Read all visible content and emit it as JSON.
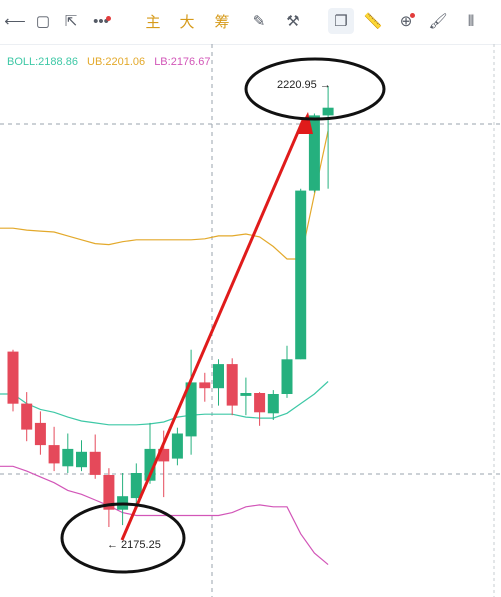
{
  "toolbar": {
    "items": [
      {
        "icon": "horizontal-line-icon",
        "glyph": "⟵"
      },
      {
        "icon": "rectangle-icon",
        "glyph": "▢"
      },
      {
        "icon": "cursor-arrow-icon",
        "glyph": "⇱"
      },
      {
        "icon": "dots-icon",
        "glyph": "•••"
      },
      {
        "icon": "text-zhu",
        "glyph": "主"
      },
      {
        "icon": "text-da",
        "glyph": "大"
      },
      {
        "icon": "text-chou",
        "glyph": "筹"
      },
      {
        "icon": "edit-note-icon",
        "glyph": "✎"
      },
      {
        "icon": "ruler-pen-icon",
        "glyph": "⚒"
      },
      {
        "icon": "copy-icon",
        "glyph": "❐"
      },
      {
        "icon": "ruler-icon",
        "glyph": "📏"
      },
      {
        "icon": "zoom-icon",
        "glyph": "⊕"
      },
      {
        "icon": "brush-icon",
        "glyph": "🖌"
      },
      {
        "icon": "candles-icon",
        "glyph": "⫴"
      }
    ]
  },
  "legend": {
    "boll": "BOLL:2188.86",
    "ub": "UB:2201.06",
    "lb": "LB:2176.67"
  },
  "colors": {
    "up": "#25b07e",
    "down": "#e5495a",
    "boll": "#3ec8a6",
    "ub": "#e3a92b",
    "lb": "#d256b8",
    "arrow": "#e01b1b"
  },
  "annotations": {
    "high_label": "2220.95 →",
    "low_label": "← 2175.25"
  },
  "chart_data": {
    "type": "candlestick",
    "ylim": [
      2171,
      2224
    ],
    "high_value": 2220.95,
    "low_value": 2175.25,
    "candles": [
      {
        "o": 2193.4,
        "h": 2193.6,
        "l": 2187.2,
        "c": 2188.0
      },
      {
        "o": 2188.0,
        "h": 2189.2,
        "l": 2184.1,
        "c": 2185.3
      },
      {
        "o": 2186.0,
        "h": 2187.2,
        "l": 2182.7,
        "c": 2183.7
      },
      {
        "o": 2183.7,
        "h": 2185.6,
        "l": 2181.0,
        "c": 2181.8
      },
      {
        "o": 2181.5,
        "h": 2184.9,
        "l": 2180.8,
        "c": 2183.3
      },
      {
        "o": 2181.4,
        "h": 2184.2,
        "l": 2181.0,
        "c": 2183.0
      },
      {
        "o": 2183.0,
        "h": 2184.8,
        "l": 2180.2,
        "c": 2180.6
      },
      {
        "o": 2180.6,
        "h": 2181.3,
        "l": 2175.2,
        "c": 2177.0
      },
      {
        "o": 2177.0,
        "h": 2180.8,
        "l": 2175.4,
        "c": 2178.4
      },
      {
        "o": 2178.2,
        "h": 2181.8,
        "l": 2177.1,
        "c": 2180.8
      },
      {
        "o": 2180.0,
        "h": 2186.0,
        "l": 2179.7,
        "c": 2183.3
      },
      {
        "o": 2183.3,
        "h": 2185.2,
        "l": 2178.3,
        "c": 2182.0
      },
      {
        "o": 2182.3,
        "h": 2185.5,
        "l": 2181.6,
        "c": 2184.9
      },
      {
        "o": 2184.6,
        "h": 2193.6,
        "l": 2182.7,
        "c": 2190.2
      },
      {
        "o": 2190.2,
        "h": 2191.2,
        "l": 2188.2,
        "c": 2189.6
      },
      {
        "o": 2189.6,
        "h": 2192.6,
        "l": 2187.8,
        "c": 2192.1
      },
      {
        "o": 2192.1,
        "h": 2192.7,
        "l": 2186.8,
        "c": 2187.8
      },
      {
        "o": 2188.8,
        "h": 2190.7,
        "l": 2186.8,
        "c": 2189.1
      },
      {
        "o": 2189.1,
        "h": 2189.2,
        "l": 2185.7,
        "c": 2187.1
      },
      {
        "o": 2187.0,
        "h": 2189.4,
        "l": 2186.3,
        "c": 2189.0
      },
      {
        "o": 2189.0,
        "h": 2194.0,
        "l": 2188.6,
        "c": 2192.6
      },
      {
        "o": 2192.6,
        "h": 2210.3,
        "l": 2192.6,
        "c": 2210.1
      },
      {
        "o": 2210.1,
        "h": 2218.1,
        "l": 2209.9,
        "c": 2217.9
      },
      {
        "o": 2217.9,
        "h": 2220.95,
        "l": 2210.3,
        "c": 2218.7
      }
    ],
    "lines": {
      "UB": [
        2206.2,
        2206.0,
        2205.9,
        2205.8,
        2205.4,
        2205.0,
        2204.6,
        2204.5,
        2204.8,
        2205.0,
        2205.0,
        2205.0,
        2205.0,
        2205.0,
        2205.1,
        2205.4,
        2205.4,
        2205.6,
        2205.3,
        2204.3,
        2203.0,
        2203.0,
        2209.7,
        2216.3
      ],
      "BOLL": [
        2189.0,
        2188.0,
        2187.4,
        2187.1,
        2186.6,
        2186.2,
        2186.0,
        2185.8,
        2185.8,
        2185.8,
        2185.9,
        2186.1,
        2186.6,
        2186.8,
        2186.9,
        2186.9,
        2186.9,
        2186.6,
        2186.5,
        2186.5,
        2187.0,
        2188.0,
        2189.0,
        2190.3
      ],
      "LB": [
        2181.5,
        2181.0,
        2180.4,
        2179.8,
        2179.0,
        2178.6,
        2178.0,
        2177.4,
        2176.7,
        2176.4,
        2176.4,
        2176.4,
        2176.4,
        2176.4,
        2176.4,
        2176.4,
        2176.7,
        2177.3,
        2177.5,
        2177.3,
        2177.3,
        2174.5,
        2172.5,
        2171.3
      ]
    }
  }
}
